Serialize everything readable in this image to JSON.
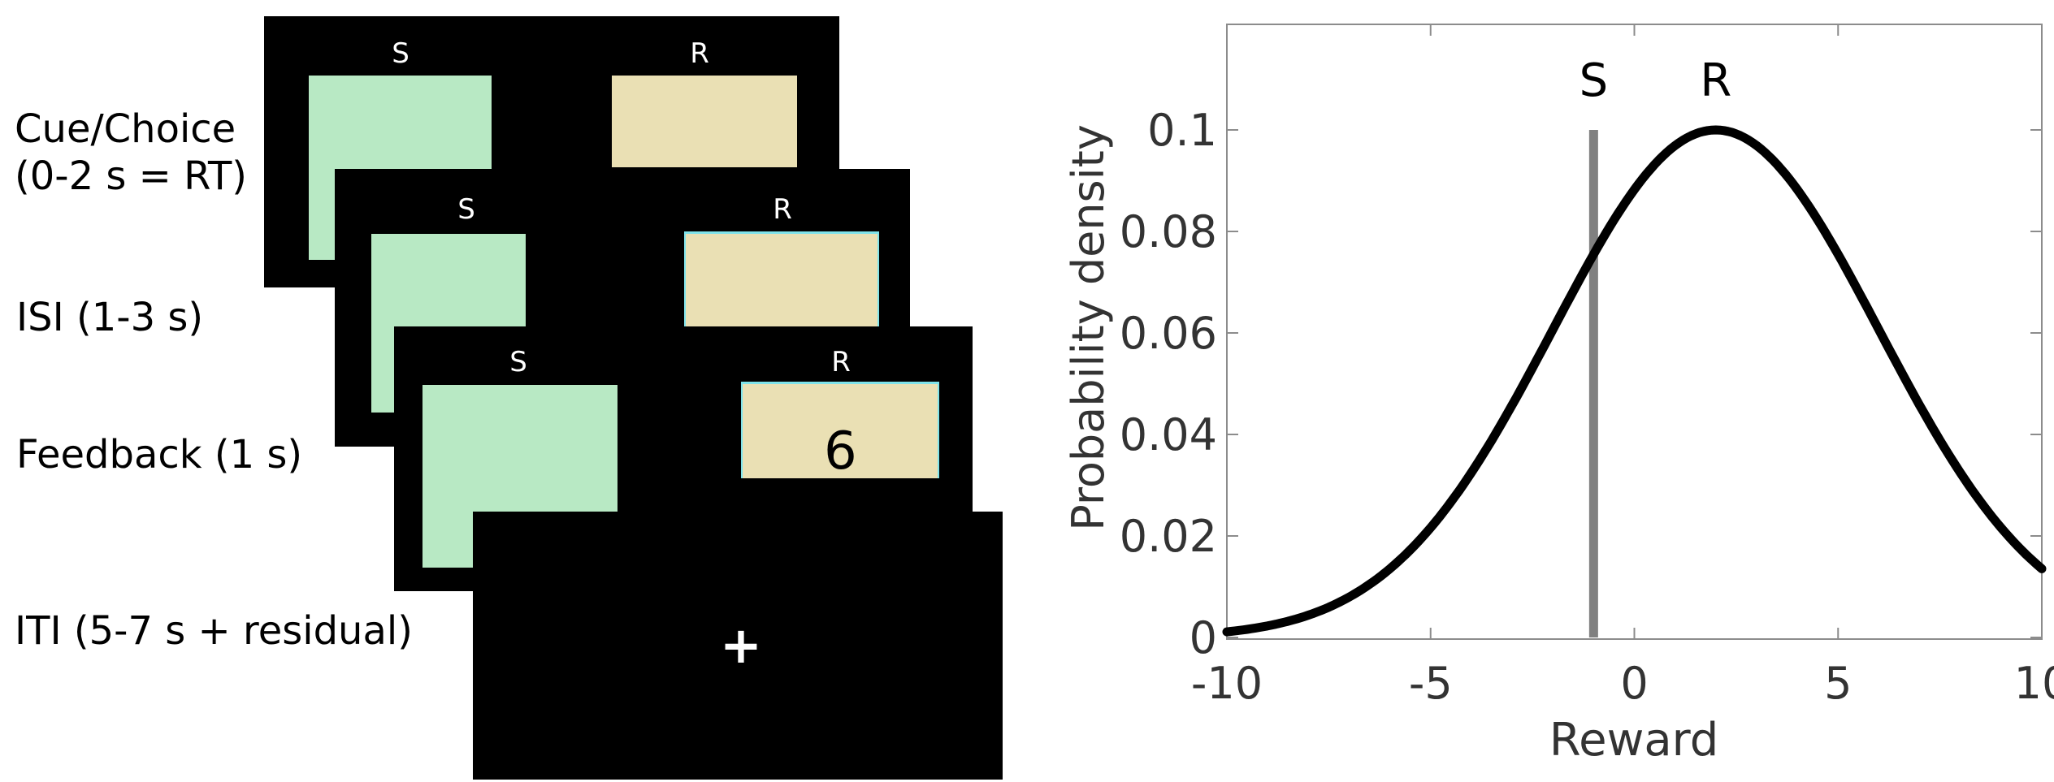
{
  "colors": {
    "safe_box": "#b8e9c4",
    "risky_box": "#eae0b4",
    "highlight": "#7fe3ea",
    "screen": "#000000",
    "density_curve": "#000000",
    "safe_line": "#808080"
  },
  "task": {
    "stages": [
      {
        "label": "Cue/Choice",
        "label2": "(0-2 s = RT)"
      },
      {
        "label": "ISI (1-3 s)"
      },
      {
        "label": "Feedback (1 s)"
      },
      {
        "label": "ITI (5-7 s + residual)"
      }
    ],
    "safe_letter": "S",
    "risky_letter": "R",
    "feedback_value": "6",
    "fixation": "+"
  },
  "chart_data": {
    "type": "line",
    "xlabel": "Reward",
    "ylabel": "Probability density",
    "xlim": [
      -10,
      10
    ],
    "ylim": [
      0,
      0.12
    ],
    "xticks": [
      -10,
      -5,
      0,
      5,
      10
    ],
    "yticks": [
      0,
      0.02,
      0.04,
      0.06,
      0.08,
      0.1
    ],
    "ytick_labels": [
      "0",
      "0.02",
      "0.04",
      "0.06",
      "0.08",
      "0.1"
    ],
    "series": [
      {
        "distribution": "normal",
        "mean": 2,
        "sd": 4,
        "peak": 0.1,
        "x": [
          -10,
          -9,
          -8,
          -7,
          -6,
          -5,
          -4,
          -3,
          -2,
          -1,
          0,
          1,
          2,
          3,
          4,
          5,
          6,
          7,
          8,
          9,
          10
        ],
        "y": [
          0.0011,
          0.0022,
          0.0044,
          0.0077,
          0.0135,
          0.0216,
          0.0325,
          0.0458,
          0.0607,
          0.0755,
          0.0882,
          0.0969,
          0.1,
          0.0969,
          0.0882,
          0.0755,
          0.0607,
          0.0458,
          0.0325,
          0.0216,
          0.0135
        ]
      }
    ],
    "safe_line": {
      "x": -1,
      "y_top": 0.1
    },
    "annotations": [
      {
        "text": "S",
        "x": -1
      },
      {
        "text": "R",
        "x": 2
      }
    ],
    "grid": false
  }
}
